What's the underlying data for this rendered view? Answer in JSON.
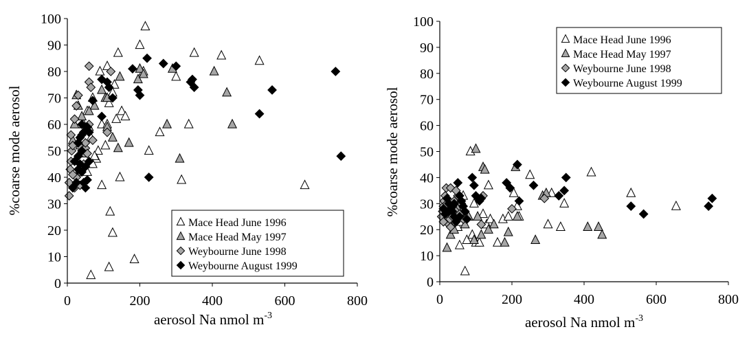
{
  "chart_data": [
    {
      "type": "scatter",
      "xlabel": "aerosol Na nmol m",
      "xlabel_sup": "-3",
      "ylabel": "%coarse mode aerosol",
      "xlim": [
        0,
        800
      ],
      "ylim": [
        0,
        100
      ],
      "xticks": [
        "0",
        "200",
        "400",
        "600",
        "800"
      ],
      "yticks": [
        "0",
        "10",
        "20",
        "30",
        "40",
        "50",
        "60",
        "70",
        "80",
        "90",
        "100"
      ],
      "grid": false,
      "legend_position": "bottom-right",
      "series": [
        {
          "name": "Mace Head June 1996",
          "marker": "triangle",
          "fill": "#ffffff",
          "points": [
            [
              65,
              3
            ],
            [
              115,
              6
            ],
            [
              125,
              19
            ],
            [
              118,
              27
            ],
            [
              185,
              9
            ],
            [
              95,
              37
            ],
            [
              145,
              40
            ],
            [
              225,
              50
            ],
            [
              105,
              52
            ],
            [
              135,
              62
            ],
            [
              150,
              65
            ],
            [
              160,
              63
            ],
            [
              95,
              60
            ],
            [
              110,
              60
            ],
            [
              115,
              68
            ],
            [
              125,
              72
            ],
            [
              130,
              75
            ],
            [
              85,
              50
            ],
            [
              80,
              47
            ],
            [
              65,
              55
            ],
            [
              75,
              48
            ],
            [
              60,
              45
            ],
            [
              70,
              45
            ],
            [
              55,
              42
            ],
            [
              90,
              80
            ],
            [
              110,
              82
            ],
            [
              140,
              87
            ],
            [
              200,
              90
            ],
            [
              215,
              97
            ],
            [
              300,
              78
            ],
            [
              335,
              60
            ],
            [
              315,
              39
            ],
            [
              350,
              87
            ],
            [
              425,
              86
            ],
            [
              530,
              84
            ],
            [
              655,
              37
            ],
            [
              55,
              65
            ],
            [
              45,
              60
            ],
            [
              70,
              70
            ],
            [
              210,
              80
            ],
            [
              255,
              57
            ]
          ]
        },
        {
          "name": "Mace Head May 1997",
          "marker": "triangle",
          "fill": "#a6a6a6",
          "points": [
            [
              25,
              71
            ],
            [
              30,
              67
            ],
            [
              40,
              63
            ],
            [
              20,
              60
            ],
            [
              15,
              54
            ],
            [
              35,
              52
            ],
            [
              45,
              49
            ],
            [
              60,
              59
            ],
            [
              75,
              67
            ],
            [
              95,
              73
            ],
            [
              105,
              70
            ],
            [
              110,
              59
            ],
            [
              125,
              55
            ],
            [
              140,
              51
            ],
            [
              170,
              53
            ],
            [
              145,
              78
            ],
            [
              195,
              77
            ],
            [
              200,
              81
            ],
            [
              210,
              79
            ],
            [
              275,
              60
            ],
            [
              290,
              81
            ],
            [
              310,
              47
            ],
            [
              405,
              80
            ],
            [
              440,
              72
            ],
            [
              455,
              60
            ],
            [
              110,
              70
            ],
            [
              60,
              65
            ]
          ]
        },
        {
          "name": "Weybourne June 1998",
          "marker": "diamond",
          "fill": "#a6a6a6",
          "points": [
            [
              5,
              33
            ],
            [
              5,
              38
            ],
            [
              8,
              43
            ],
            [
              10,
              46
            ],
            [
              12,
              50
            ],
            [
              15,
              52
            ],
            [
              10,
              56
            ],
            [
              20,
              62
            ],
            [
              25,
              67
            ],
            [
              30,
              71
            ],
            [
              40,
              56
            ],
            [
              50,
              51
            ],
            [
              55,
              49
            ],
            [
              45,
              45
            ],
            [
              35,
              42
            ],
            [
              25,
              40
            ],
            [
              60,
              76
            ],
            [
              65,
              74
            ],
            [
              60,
              82
            ],
            [
              70,
              54
            ],
            [
              110,
              57
            ],
            [
              120,
              80
            ],
            [
              20,
              36
            ],
            [
              35,
              37
            ],
            [
              15,
              41
            ],
            [
              50,
              53
            ],
            [
              60,
              60
            ]
          ]
        },
        {
          "name": "Weybourne August 1999",
          "marker": "diamond",
          "fill": "#000000",
          "points": [
            [
              15,
              36
            ],
            [
              25,
              38
            ],
            [
              30,
              43
            ],
            [
              35,
              45
            ],
            [
              40,
              42
            ],
            [
              45,
              38
            ],
            [
              50,
              36
            ],
            [
              55,
              39
            ],
            [
              30,
              53
            ],
            [
              35,
              55
            ],
            [
              45,
              57
            ],
            [
              55,
              59
            ],
            [
              60,
              57
            ],
            [
              40,
              60
            ],
            [
              95,
              63
            ],
            [
              70,
              69
            ],
            [
              95,
              77
            ],
            [
              110,
              76
            ],
            [
              125,
              70
            ],
            [
              115,
              74
            ],
            [
              220,
              85
            ],
            [
              225,
              40
            ],
            [
              180,
              81
            ],
            [
              195,
              73
            ],
            [
              200,
              71
            ],
            [
              265,
              83
            ],
            [
              300,
              82
            ],
            [
              340,
              76
            ],
            [
              345,
              77
            ],
            [
              350,
              74
            ],
            [
              530,
              64
            ],
            [
              565,
              73
            ],
            [
              740,
              80
            ],
            [
              755,
              48
            ],
            [
              20,
              46
            ],
            [
              30,
              48
            ],
            [
              60,
              46
            ],
            [
              40,
              50
            ],
            [
              50,
              44
            ]
          ]
        }
      ]
    },
    {
      "type": "scatter",
      "xlabel": "aerosol Na nmol m",
      "xlabel_sup": "-3",
      "ylabel": "%coarse mode aerosol",
      "xlim": [
        0,
        800
      ],
      "ylim": [
        0,
        100
      ],
      "xticks": [
        "0",
        "200",
        "400",
        "600",
        "800"
      ],
      "yticks": [
        "0",
        "10",
        "20",
        "30",
        "40",
        "50",
        "60",
        "70",
        "80",
        "90",
        "100"
      ],
      "grid": false,
      "legend_position": "top-right",
      "series": [
        {
          "name": "Mace Head June 1996",
          "marker": "triangle",
          "fill": "#ffffff",
          "points": [
            [
              70,
              4
            ],
            [
              55,
              14
            ],
            [
              75,
              16
            ],
            [
              90,
              18
            ],
            [
              100,
              15
            ],
            [
              110,
              15
            ],
            [
              130,
              22
            ],
            [
              140,
              24
            ],
            [
              160,
              15
            ],
            [
              175,
              24
            ],
            [
              190,
              25
            ],
            [
              205,
              34
            ],
            [
              215,
              29
            ],
            [
              220,
              25
            ],
            [
              250,
              41
            ],
            [
              300,
              22
            ],
            [
              310,
              34
            ],
            [
              335,
              21
            ],
            [
              345,
              30
            ],
            [
              420,
              42
            ],
            [
              530,
              34
            ],
            [
              655,
              29
            ],
            [
              50,
              21
            ],
            [
              60,
              23
            ],
            [
              85,
              50
            ],
            [
              120,
              26
            ],
            [
              135,
              37
            ],
            [
              65,
              33
            ],
            [
              80,
              25
            ],
            [
              95,
              30
            ]
          ]
        },
        {
          "name": "Mace Head May 1997",
          "marker": "triangle",
          "fill": "#a6a6a6",
          "points": [
            [
              20,
              13
            ],
            [
              30,
              18
            ],
            [
              40,
              20
            ],
            [
              55,
              25
            ],
            [
              60,
              28
            ],
            [
              70,
              22
            ],
            [
              80,
              25
            ],
            [
              95,
              16
            ],
            [
              100,
              51
            ],
            [
              105,
              25
            ],
            [
              120,
              44
            ],
            [
              125,
              43
            ],
            [
              135,
              20
            ],
            [
              150,
              22
            ],
            [
              180,
              15
            ],
            [
              190,
              19
            ],
            [
              210,
              44
            ],
            [
              215,
              25
            ],
            [
              265,
              16
            ],
            [
              285,
              33
            ],
            [
              295,
              34
            ],
            [
              410,
              21
            ],
            [
              440,
              21
            ],
            [
              450,
              18
            ],
            [
              115,
              18
            ],
            [
              50,
              28
            ]
          ]
        },
        {
          "name": "Weybourne June 1998",
          "marker": "diamond",
          "fill": "#a6a6a6",
          "points": [
            [
              5,
              25
            ],
            [
              8,
              27
            ],
            [
              10,
              29
            ],
            [
              12,
              31
            ],
            [
              15,
              33
            ],
            [
              18,
              36
            ],
            [
              20,
              30
            ],
            [
              22,
              26
            ],
            [
              25,
              22
            ],
            [
              28,
              24
            ],
            [
              30,
              21
            ],
            [
              35,
              29
            ],
            [
              40,
              31
            ],
            [
              45,
              27
            ],
            [
              50,
              33
            ],
            [
              55,
              26
            ],
            [
              60,
              30
            ],
            [
              65,
              24
            ],
            [
              115,
              22
            ],
            [
              120,
              33
            ],
            [
              200,
              28
            ],
            [
              290,
              32
            ],
            [
              10,
              23
            ],
            [
              30,
              36
            ],
            [
              45,
              35
            ],
            [
              35,
              25
            ]
          ]
        },
        {
          "name": "Weybourne August 1999",
          "marker": "diamond",
          "fill": "#000000",
          "points": [
            [
              10,
              28
            ],
            [
              15,
              26
            ],
            [
              20,
              32
            ],
            [
              25,
              30
            ],
            [
              30,
              28
            ],
            [
              35,
              27
            ],
            [
              40,
              25
            ],
            [
              45,
              23
            ],
            [
              50,
              38
            ],
            [
              55,
              33
            ],
            [
              60,
              31
            ],
            [
              65,
              29
            ],
            [
              70,
              27
            ],
            [
              75,
              24
            ],
            [
              90,
              40
            ],
            [
              95,
              37
            ],
            [
              100,
              33
            ],
            [
              110,
              31
            ],
            [
              115,
              32
            ],
            [
              185,
              38
            ],
            [
              195,
              36
            ],
            [
              215,
              45
            ],
            [
              220,
              31
            ],
            [
              260,
              37
            ],
            [
              330,
              33
            ],
            [
              350,
              40
            ],
            [
              345,
              35
            ],
            [
              530,
              29
            ],
            [
              565,
              26
            ],
            [
              745,
              29
            ],
            [
              755,
              32
            ],
            [
              25,
              27
            ],
            [
              40,
              30
            ],
            [
              55,
              25
            ]
          ]
        }
      ]
    }
  ]
}
